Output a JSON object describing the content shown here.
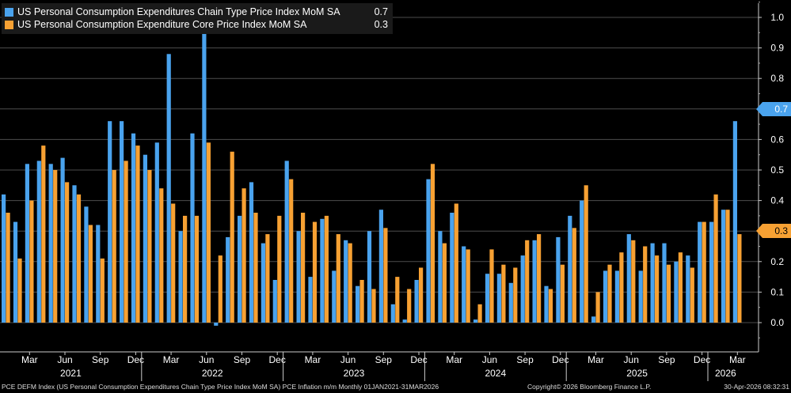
{
  "legend": {
    "series1_name": "US Personal Consumption Expenditures Chain Type Price Index MoM SA",
    "series1_value": "0.7",
    "series2_name": "US Personal Consumption Expenditure Core Price Index MoM SA",
    "series2_value": "0.3"
  },
  "footer": {
    "left": "PCE DEFM Index (US Personal Consumption Expenditures Chain Type Price Index MoM SA) PCE Inflation m/m Monthly 01JAN2021-31MAR2026",
    "center": "Copyright© 2026 Bloomberg Finance L.P.",
    "right": "30-Apr-2026 08:32:31"
  },
  "colors": {
    "headline": "#4aa3ee",
    "core": "#f7a133",
    "grid": "#4d4d4d",
    "background": "#000000"
  },
  "chart_data": {
    "type": "bar",
    "x_start": "2021-01",
    "x_end": "2026-03",
    "ylim": [
      -0.1,
      1.05
    ],
    "yticks": [
      "0.0",
      "0.1",
      "0.2",
      "0.3",
      "0.4",
      "0.5",
      "0.6",
      "0.7",
      "0.8",
      "0.9",
      "1.0"
    ],
    "month_ticks": [
      "Mar",
      "Jun",
      "Sep",
      "Dec",
      "Mar",
      "Jun",
      "Sep",
      "Dec",
      "Mar",
      "Jun",
      "Sep",
      "Dec",
      "Mar",
      "Jun",
      "Sep",
      "Dec",
      "Mar",
      "Jun",
      "Sep",
      "Dec",
      "Mar"
    ],
    "year_labels": [
      "2021",
      "2022",
      "2023",
      "2024",
      "2025",
      "2026"
    ],
    "last_value_tags": [
      "0.7",
      "0.3"
    ],
    "series": [
      {
        "name": "US Personal Consumption Expenditures Chain Type Price Index MoM SA",
        "values": [
          0.42,
          0.33,
          0.52,
          0.53,
          0.52,
          0.54,
          0.45,
          0.38,
          0.32,
          0.66,
          0.66,
          0.62,
          0.55,
          0.59,
          0.88,
          0.3,
          0.62,
          0.96,
          -0.01,
          0.28,
          0.35,
          0.46,
          0.26,
          0.14,
          0.53,
          0.3,
          0.15,
          0.34,
          0.17,
          0.27,
          0.12,
          0.3,
          0.37,
          0.06,
          0.01,
          0.14,
          0.47,
          0.3,
          0.36,
          0.25,
          0.01,
          0.16,
          0.16,
          0.13,
          0.22,
          0.27,
          0.12,
          0.28,
          0.35,
          0.4,
          0.02,
          0.17,
          0.17,
          0.29,
          0.17,
          0.26,
          0.26,
          0.2,
          0.22,
          0.33,
          0.33,
          0.37,
          0.66
        ]
      },
      {
        "name": "US Personal Consumption Expenditure Core Price Index MoM SA",
        "values": [
          0.36,
          0.21,
          0.4,
          0.58,
          0.5,
          0.46,
          0.42,
          0.32,
          0.21,
          0.5,
          0.53,
          0.58,
          0.5,
          0.44,
          0.39,
          0.35,
          0.35,
          0.59,
          0.22,
          0.56,
          0.44,
          0.36,
          0.29,
          0.35,
          0.47,
          0.36,
          0.33,
          0.35,
          0.29,
          0.26,
          0.14,
          0.11,
          0.31,
          0.15,
          0.11,
          0.18,
          0.52,
          0.26,
          0.39,
          0.24,
          0.06,
          0.24,
          0.19,
          0.18,
          0.27,
          0.29,
          0.11,
          0.19,
          0.31,
          0.45,
          0.1,
          0.19,
          0.23,
          0.27,
          0.25,
          0.22,
          0.19,
          0.23,
          0.18,
          0.33,
          0.42,
          0.37,
          0.29
        ]
      }
    ]
  }
}
